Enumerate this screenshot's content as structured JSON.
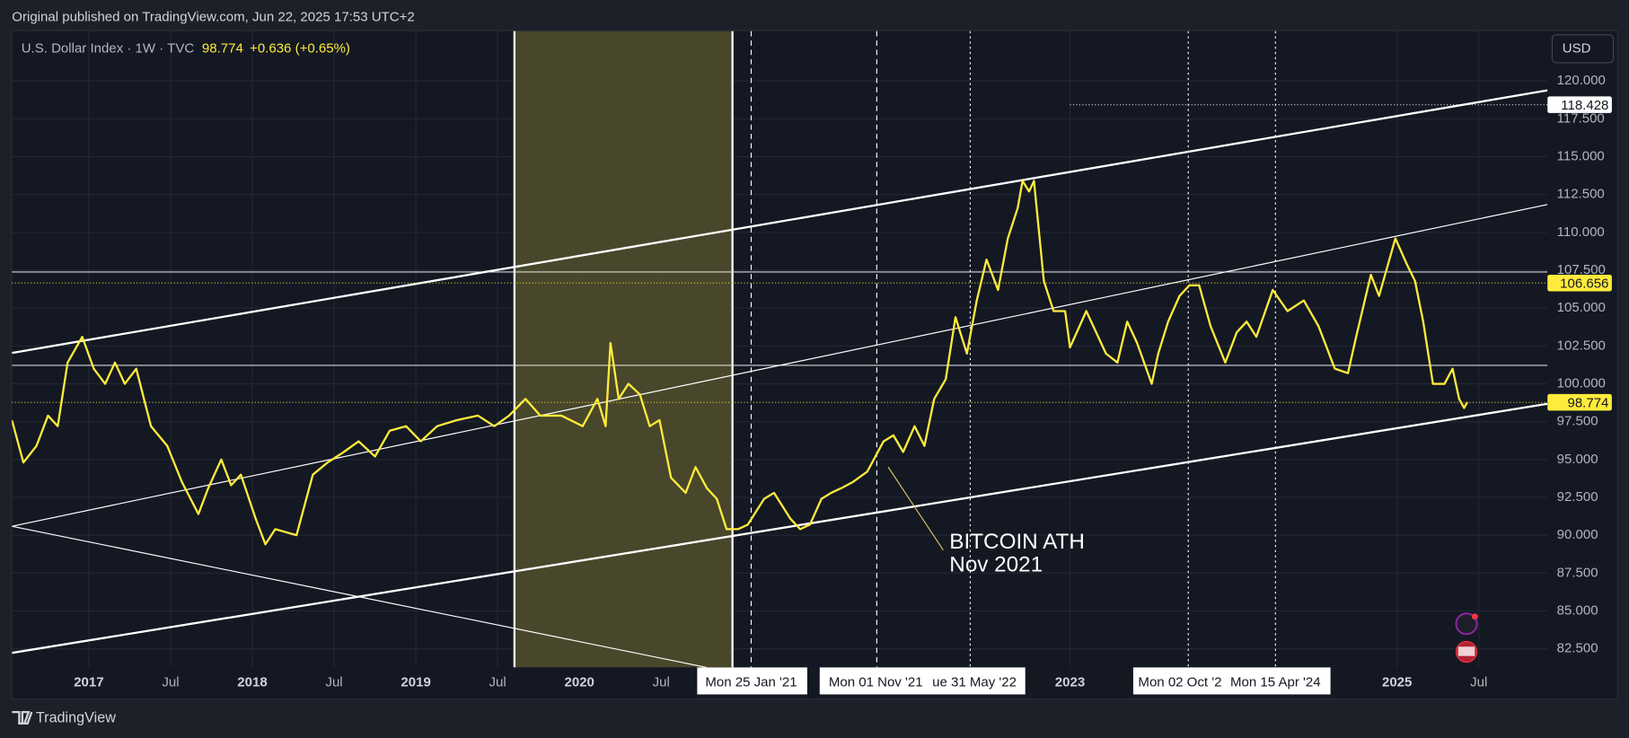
{
  "header": {
    "published": "Original published on TradingView.com, Jun 22, 2025 17:53 UTC+2"
  },
  "legend": {
    "last": 98.774,
    "change": "+0.636 (+0.65%)"
  },
  "currency_button": "USD",
  "annotation": {
    "line1": "BITCOIN ATH",
    "line2": "Nov 2021"
  },
  "time_labels": [
    "Mon 25 Jan '21",
    "Mon 01 Nov '21",
    "ue 31 May '22",
    "Mon 02 Oct '2",
    "Mon 15 Apr '24"
  ],
  "footer": {
    "brand": "TradingView"
  },
  "chart_data": {
    "type": "line",
    "series": [
      {
        "name": "U.S. Dollar Index · 1W · TVC",
        "color": "#ffeb3b",
        "x": [
          2016.53,
          2016.6,
          2016.68,
          2016.75,
          2016.81,
          2016.87,
          2016.96,
          2017.03,
          2017.1,
          2017.16,
          2017.22,
          2017.29,
          2017.38,
          2017.48,
          2017.57,
          2017.67,
          2017.73,
          2017.81,
          2017.87,
          2017.93,
          2018.02,
          2018.08,
          2018.14,
          2018.27,
          2018.37,
          2018.46,
          2018.56,
          2018.65,
          2018.75,
          2018.84,
          2018.94,
          2019.03,
          2019.13,
          2019.25,
          2019.38,
          2019.48,
          2019.57,
          2019.67,
          2019.76,
          2019.89,
          2020.02,
          2020.11,
          2020.16,
          2020.19,
          2020.24,
          2020.3,
          2020.37,
          2020.43,
          2020.49,
          2020.56,
          2020.65,
          2020.71,
          2020.78,
          2020.84,
          2020.9,
          2020.97,
          2021.03,
          2021.13,
          2021.19,
          2021.29,
          2021.35,
          2021.41,
          2021.48,
          2021.54,
          2021.6,
          2021.67,
          2021.76,
          2021.86,
          2021.92,
          2021.98,
          2022.05,
          2022.11,
          2022.17,
          2022.24,
          2022.3,
          2022.37,
          2022.43,
          2022.49,
          2022.56,
          2022.62,
          2022.68,
          2022.71,
          2022.75,
          2022.78,
          2022.84,
          2022.9,
          2022.97,
          2023.0,
          2023.1,
          2023.16,
          2023.22,
          2023.29,
          2023.35,
          2023.41,
          2023.5,
          2023.54,
          2023.6,
          2023.67,
          2023.73,
          2023.79,
          2023.86,
          2023.95,
          2024.02,
          2024.08,
          2024.14,
          2024.24,
          2024.33,
          2024.43,
          2024.52,
          2024.62,
          2024.7,
          2024.75,
          2024.84,
          2024.89,
          2024.99,
          2025.06,
          2025.11,
          2025.16,
          2025.22,
          2025.29,
          2025.34,
          2025.38,
          2025.41,
          2025.43
        ],
        "values": [
          97.6,
          94.8,
          95.9,
          97.9,
          97.2,
          101.4,
          103.1,
          101.0,
          100.0,
          101.4,
          100.0,
          101.0,
          97.2,
          95.9,
          93.5,
          91.4,
          93.1,
          95.0,
          93.3,
          94.0,
          91.1,
          89.4,
          90.4,
          90.0,
          94.0,
          94.8,
          95.5,
          96.2,
          95.2,
          96.9,
          97.2,
          96.2,
          97.2,
          97.6,
          97.9,
          97.2,
          97.9,
          99.0,
          97.9,
          97.9,
          97.2,
          99.0,
          97.2,
          102.7,
          99.0,
          100.0,
          99.3,
          97.2,
          97.6,
          93.8,
          92.8,
          94.5,
          93.1,
          92.4,
          90.4,
          90.4,
          90.7,
          92.4,
          92.8,
          91.1,
          90.4,
          90.7,
          92.4,
          92.8,
          93.1,
          93.5,
          94.2,
          96.2,
          96.6,
          95.5,
          97.2,
          95.9,
          99.0,
          100.3,
          104.4,
          102.0,
          105.5,
          108.2,
          106.2,
          109.6,
          111.6,
          113.4,
          112.7,
          113.4,
          106.8,
          104.8,
          104.8,
          102.4,
          104.8,
          103.4,
          102.0,
          101.4,
          104.1,
          102.7,
          100.0,
          102.0,
          104.1,
          105.8,
          106.5,
          106.5,
          103.8,
          101.4,
          103.4,
          104.1,
          103.1,
          106.2,
          104.8,
          105.5,
          103.8,
          101.0,
          100.7,
          103.1,
          107.2,
          105.8,
          109.6,
          107.9,
          106.8,
          104.1,
          100.0,
          100.0,
          101.0,
          99.0,
          98.4,
          98.8
        ]
      }
    ],
    "xlim": [
      2016.53,
      2025.92
    ],
    "ylim": [
      81.27,
      123.29
    ],
    "xticks": [
      2017,
      {
        "value": 2017.5,
        "label": "Jul"
      },
      2018,
      {
        "value": 2018.5,
        "label": "Jul"
      },
      2019,
      {
        "value": 2019.5,
        "label": "Jul"
      },
      2020,
      {
        "value": 2020.5,
        "label": "Jul"
      },
      2023,
      2025,
      {
        "value": 2025.5,
        "label": "Jul"
      }
    ],
    "yticks": [
      {
        "value": 82.5,
        "label": "82.500"
      },
      {
        "value": 85,
        "label": "85.000"
      },
      {
        "value": 87.5,
        "label": "87.500"
      },
      {
        "value": 90,
        "label": "90.000"
      },
      {
        "value": 92.5,
        "label": "92.500"
      },
      {
        "value": 95,
        "label": "95.000"
      },
      {
        "value": 97.5,
        "label": "97.500"
      },
      {
        "value": 100,
        "label": "100.000"
      },
      {
        "value": 102.5,
        "label": "102.500"
      },
      {
        "value": 105,
        "label": "105.000"
      },
      {
        "value": 107.5,
        "label": "107.500"
      },
      {
        "value": 110,
        "label": "110.000"
      },
      {
        "value": 112.5,
        "label": "112.500"
      },
      {
        "value": 115,
        "label": "115.000"
      },
      {
        "value": 117.5,
        "label": "117.500"
      },
      {
        "value": 120,
        "label": "120.000"
      }
    ],
    "grid": true,
    "price_labels": [
      {
        "value": 118.428,
        "color": "#ffffff"
      },
      {
        "value": 106.656,
        "color": "#ffeb3b"
      },
      {
        "value": 98.774,
        "color": "#ffeb3b"
      }
    ]
  }
}
